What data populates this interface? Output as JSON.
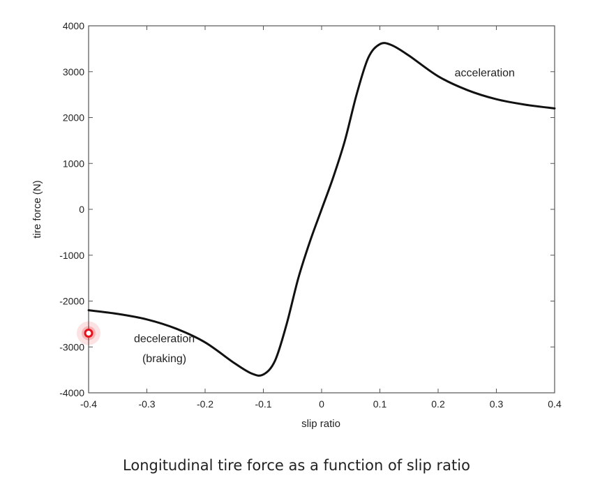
{
  "chart_data": {
    "type": "line",
    "title": "",
    "xlabel": "slip ratio",
    "ylabel": "tire force (N)",
    "xlim": [
      -0.4,
      0.4
    ],
    "ylim": [
      -4000,
      4000
    ],
    "x_ticks": [
      "-0.4",
      "-0.3",
      "-0.2",
      "-0.1",
      "0",
      "0.1",
      "0.2",
      "0.3",
      "0.4"
    ],
    "y_ticks": [
      "4000",
      "3000",
      "2000",
      "1000",
      "0",
      "-1000",
      "-2000",
      "-3000",
      "-4000"
    ],
    "grid": false,
    "series": [
      {
        "x": [
          -0.4,
          -0.35,
          -0.3,
          -0.25,
          -0.2,
          -0.15,
          -0.12,
          -0.1,
          -0.08,
          -0.06,
          -0.04,
          -0.02,
          0,
          0.02,
          0.04,
          0.06,
          0.08,
          0.1,
          0.12,
          0.15,
          0.2,
          0.25,
          0.3,
          0.35,
          0.4
        ],
        "y": [
          -2200,
          -2280,
          -2400,
          -2600,
          -2900,
          -3350,
          -3580,
          -3600,
          -3300,
          -2500,
          -1500,
          -700,
          0,
          700,
          1500,
          2500,
          3300,
          3600,
          3580,
          3350,
          2900,
          2600,
          2400,
          2280,
          2200
        ],
        "color": "#111111"
      }
    ],
    "annotations": [
      {
        "text": "acceleration",
        "x": 0.28,
        "y": 2900
      },
      {
        "text": "deceleration",
        "x": -0.27,
        "y": -2900
      },
      {
        "text": "(braking)",
        "x": -0.27,
        "y": -3330
      }
    ],
    "marker": {
      "x": -0.4,
      "y": -2700,
      "color": "#e8111b"
    }
  },
  "caption": "Longitudinal tire force as a function of slip ratio"
}
